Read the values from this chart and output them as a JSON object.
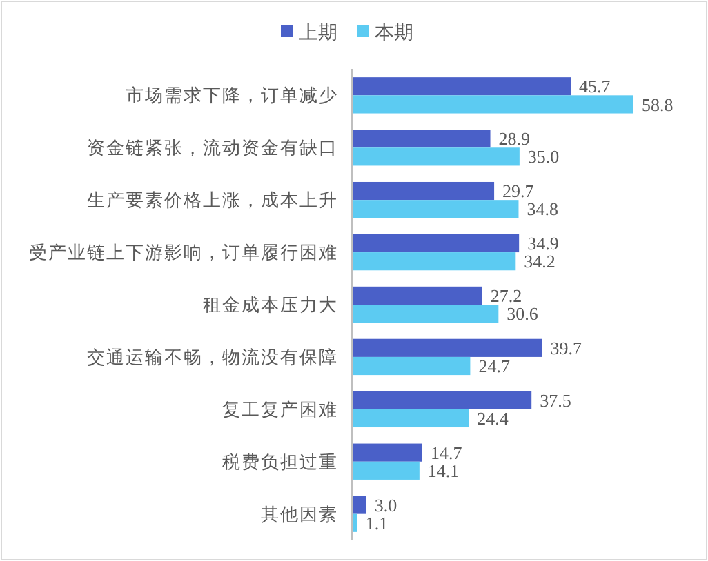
{
  "chart_data": {
    "type": "bar",
    "orientation": "horizontal",
    "legend": "top",
    "categories": [
      "市场需求下降，订单减少",
      "资金链紧张，流动资金有缺口",
      "生产要素价格上涨，成本上升",
      "受产业链上下游影响，订单履行困难",
      "租金成本压力大",
      "交通运输不畅，物流没有保障",
      "复工复产困难",
      "税费负担过重",
      "其他因素"
    ],
    "series": [
      {
        "name": "上期",
        "color": "#4a60c8",
        "values": [
          45.7,
          28.9,
          29.7,
          34.9,
          27.2,
          39.7,
          37.5,
          14.7,
          3.0
        ],
        "value_labels": [
          "45.7",
          "28.9",
          "29.7",
          "34.9",
          "27.2",
          "39.7",
          "37.5",
          "14.7",
          "3.0"
        ]
      },
      {
        "name": "本期",
        "color": "#5ccbf2",
        "values": [
          58.8,
          35.0,
          34.8,
          34.2,
          30.6,
          24.7,
          24.4,
          14.1,
          1.1
        ],
        "value_labels": [
          "58.8",
          "35.0",
          "34.8",
          "34.2",
          "30.6",
          "24.7",
          "24.4",
          "14.1",
          "1.1"
        ]
      }
    ]
  }
}
